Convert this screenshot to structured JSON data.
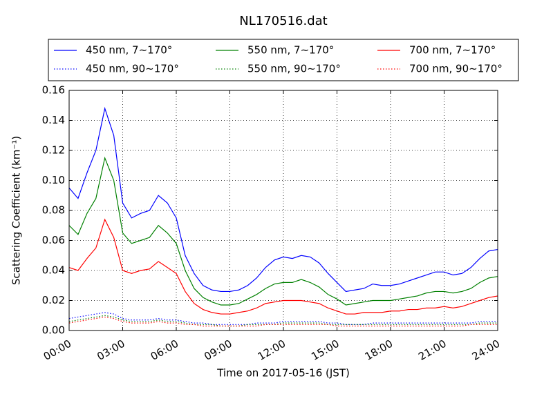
{
  "chart_data": {
    "type": "line",
    "title": "NL170516.dat",
    "xlabel": "Time on 2017-05-16 (JST)",
    "ylabel": "Scattering Coefficient (km⁻¹)",
    "x": [
      0,
      0.5,
      1,
      1.5,
      2,
      2.5,
      3,
      3.5,
      4,
      4.5,
      5,
      5.5,
      6,
      6.5,
      7,
      7.5,
      8,
      8.5,
      9,
      9.5,
      10,
      10.5,
      11,
      11.5,
      12,
      12.5,
      13,
      13.5,
      14,
      14.5,
      15,
      15.5,
      16,
      16.5,
      17,
      17.5,
      18,
      18.5,
      19,
      19.5,
      20,
      20.5,
      21,
      21.5,
      22,
      22.5,
      23,
      23.5,
      24
    ],
    "series": [
      {
        "name": "450 nm, 7∼170°",
        "color": "#0000ff",
        "linestyle": "solid",
        "values": [
          0.095,
          0.088,
          0.105,
          0.12,
          0.148,
          0.13,
          0.085,
          0.075,
          0.078,
          0.08,
          0.09,
          0.085,
          0.075,
          0.05,
          0.038,
          0.03,
          0.027,
          0.026,
          0.026,
          0.027,
          0.03,
          0.035,
          0.042,
          0.047,
          0.049,
          0.048,
          0.05,
          0.049,
          0.045,
          0.038,
          0.032,
          0.026,
          0.027,
          0.028,
          0.031,
          0.03,
          0.03,
          0.031,
          0.033,
          0.035,
          0.037,
          0.039,
          0.039,
          0.037,
          0.038,
          0.042,
          0.048,
          0.053,
          0.054
        ]
      },
      {
        "name": "450 nm, 90∼170°",
        "color": "#0000ff",
        "linestyle": "dotted",
        "values": [
          0.008,
          0.009,
          0.01,
          0.011,
          0.012,
          0.011,
          0.008,
          0.007,
          0.007,
          0.007,
          0.008,
          0.007,
          0.007,
          0.006,
          0.005,
          0.005,
          0.004,
          0.004,
          0.004,
          0.004,
          0.004,
          0.005,
          0.005,
          0.005,
          0.006,
          0.006,
          0.006,
          0.006,
          0.006,
          0.005,
          0.005,
          0.004,
          0.004,
          0.004,
          0.005,
          0.005,
          0.005,
          0.005,
          0.005,
          0.005,
          0.005,
          0.005,
          0.005,
          0.005,
          0.005,
          0.005,
          0.006,
          0.006,
          0.006
        ]
      },
      {
        "name": "550 nm, 7∼170°",
        "color": "#008000",
        "linestyle": "solid",
        "values": [
          0.07,
          0.064,
          0.078,
          0.088,
          0.115,
          0.1,
          0.065,
          0.058,
          0.06,
          0.062,
          0.07,
          0.065,
          0.058,
          0.04,
          0.028,
          0.022,
          0.019,
          0.017,
          0.017,
          0.018,
          0.021,
          0.024,
          0.028,
          0.031,
          0.032,
          0.032,
          0.034,
          0.032,
          0.029,
          0.024,
          0.021,
          0.017,
          0.018,
          0.019,
          0.02,
          0.02,
          0.02,
          0.021,
          0.022,
          0.023,
          0.025,
          0.026,
          0.026,
          0.025,
          0.026,
          0.028,
          0.032,
          0.035,
          0.036
        ]
      },
      {
        "name": "550 nm, 90∼170°",
        "color": "#008000",
        "linestyle": "dotted",
        "values": [
          0.006,
          0.007,
          0.008,
          0.009,
          0.01,
          0.009,
          0.007,
          0.006,
          0.006,
          0.006,
          0.007,
          0.006,
          0.006,
          0.005,
          0.004,
          0.004,
          0.004,
          0.003,
          0.003,
          0.003,
          0.004,
          0.004,
          0.004,
          0.004,
          0.005,
          0.005,
          0.005,
          0.005,
          0.005,
          0.004,
          0.004,
          0.004,
          0.004,
          0.004,
          0.004,
          0.004,
          0.004,
          0.004,
          0.004,
          0.004,
          0.004,
          0.004,
          0.004,
          0.004,
          0.004,
          0.004,
          0.005,
          0.005,
          0.005
        ]
      },
      {
        "name": "700 nm, 7∼170°",
        "color": "#ff0000",
        "linestyle": "solid",
        "values": [
          0.042,
          0.04,
          0.048,
          0.055,
          0.074,
          0.062,
          0.04,
          0.038,
          0.04,
          0.041,
          0.046,
          0.042,
          0.038,
          0.026,
          0.018,
          0.014,
          0.012,
          0.011,
          0.011,
          0.012,
          0.013,
          0.015,
          0.018,
          0.019,
          0.02,
          0.02,
          0.02,
          0.019,
          0.018,
          0.015,
          0.013,
          0.011,
          0.011,
          0.012,
          0.012,
          0.012,
          0.013,
          0.013,
          0.014,
          0.014,
          0.015,
          0.015,
          0.016,
          0.015,
          0.016,
          0.018,
          0.02,
          0.022,
          0.023
        ]
      },
      {
        "name": "700 nm, 90∼170°",
        "color": "#ff0000",
        "linestyle": "dotted",
        "values": [
          0.005,
          0.006,
          0.007,
          0.008,
          0.009,
          0.008,
          0.006,
          0.005,
          0.005,
          0.005,
          0.006,
          0.005,
          0.005,
          0.004,
          0.004,
          0.003,
          0.003,
          0.003,
          0.003,
          0.003,
          0.003,
          0.003,
          0.004,
          0.004,
          0.004,
          0.004,
          0.004,
          0.004,
          0.004,
          0.004,
          0.003,
          0.003,
          0.003,
          0.003,
          0.003,
          0.003,
          0.003,
          0.003,
          0.003,
          0.003,
          0.003,
          0.003,
          0.003,
          0.003,
          0.003,
          0.004,
          0.004,
          0.004,
          0.004
        ]
      }
    ],
    "xlim": [
      0,
      24
    ],
    "xticks": [
      {
        "value": 0,
        "label": "00:00"
      },
      {
        "value": 3,
        "label": "03:00"
      },
      {
        "value": 6,
        "label": "06:00"
      },
      {
        "value": 9,
        "label": "09:00"
      },
      {
        "value": 12,
        "label": "12:00"
      },
      {
        "value": 15,
        "label": "15:00"
      },
      {
        "value": 18,
        "label": "18:00"
      },
      {
        "value": 21,
        "label": "21:00"
      },
      {
        "value": 24,
        "label": "24:00"
      }
    ],
    "ylim": [
      0,
      0.16
    ],
    "yticks": [
      {
        "value": 0,
        "label": "0.00"
      },
      {
        "value": 0.02,
        "label": "0.02"
      },
      {
        "value": 0.04,
        "label": "0.04"
      },
      {
        "value": 0.06,
        "label": "0.06"
      },
      {
        "value": 0.08,
        "label": "0.08"
      },
      {
        "value": 0.1,
        "label": "0.10"
      },
      {
        "value": 0.12,
        "label": "0.12"
      },
      {
        "value": 0.14,
        "label": "0.14"
      },
      {
        "value": 0.16,
        "label": "0.16"
      }
    ],
    "grid": true,
    "legend": "top"
  }
}
